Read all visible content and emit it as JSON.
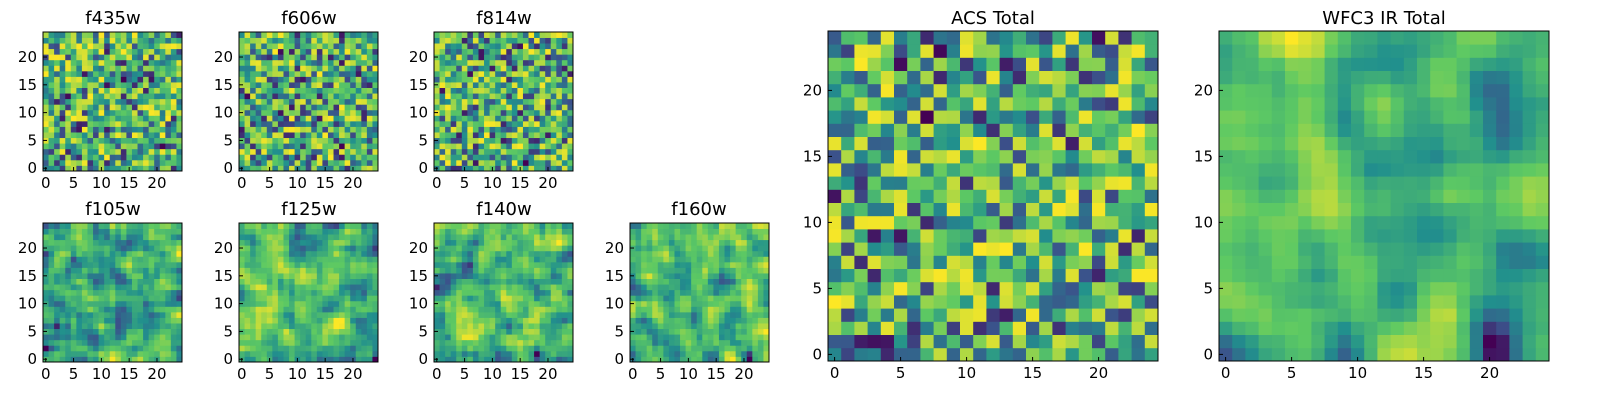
{
  "chart_data": [
    {
      "type": "heatmap",
      "title": "f435w",
      "xlim": [
        0,
        25
      ],
      "ylim": [
        0,
        25
      ],
      "xticks": [
        0,
        5,
        10,
        15,
        20
      ],
      "yticks": [
        0,
        5,
        10,
        15,
        20
      ],
      "grid": "25x25",
      "pattern_seed": 11,
      "smoothness": "low"
    },
    {
      "type": "heatmap",
      "title": "f606w",
      "xlim": [
        0,
        25
      ],
      "ylim": [
        0,
        25
      ],
      "xticks": [
        0,
        5,
        10,
        15,
        20
      ],
      "yticks": [
        0,
        5,
        10,
        15,
        20
      ],
      "grid": "25x25",
      "pattern_seed": 23,
      "smoothness": "low"
    },
    {
      "type": "heatmap",
      "title": "f814w",
      "xlim": [
        0,
        25
      ],
      "ylim": [
        0,
        25
      ],
      "xticks": [
        0,
        5,
        10,
        15,
        20
      ],
      "yticks": [
        0,
        5,
        10,
        15,
        20
      ],
      "grid": "25x25",
      "pattern_seed": 37,
      "smoothness": "low"
    },
    {
      "type": "heatmap",
      "title": "f105w",
      "xlim": [
        0,
        25
      ],
      "ylim": [
        0,
        25
      ],
      "xticks": [
        0,
        5,
        10,
        15,
        20
      ],
      "yticks": [
        0,
        5,
        10,
        15,
        20
      ],
      "grid": "25x25",
      "pattern_seed": 41,
      "smoothness": "medium"
    },
    {
      "type": "heatmap",
      "title": "f125w",
      "xlim": [
        0,
        25
      ],
      "ylim": [
        0,
        25
      ],
      "xticks": [
        0,
        5,
        10,
        15,
        20
      ],
      "yticks": [
        0,
        5,
        10,
        15,
        20
      ],
      "grid": "25x25",
      "pattern_seed": 53,
      "smoothness": "medium"
    },
    {
      "type": "heatmap",
      "title": "f140w",
      "xlim": [
        0,
        25
      ],
      "ylim": [
        0,
        25
      ],
      "xticks": [
        0,
        5,
        10,
        15,
        20
      ],
      "yticks": [
        0,
        5,
        10,
        15,
        20
      ],
      "grid": "25x25",
      "pattern_seed": 67,
      "smoothness": "medium"
    },
    {
      "type": "heatmap",
      "title": "f160w",
      "xlim": [
        0,
        25
      ],
      "ylim": [
        0,
        25
      ],
      "xticks": [
        0,
        5,
        10,
        15,
        20
      ],
      "yticks": [
        0,
        5,
        10,
        15,
        20
      ],
      "grid": "25x25",
      "pattern_seed": 79,
      "smoothness": "medium"
    },
    {
      "type": "heatmap",
      "title": "ACS Total",
      "xlim": [
        0,
        25
      ],
      "ylim": [
        0,
        25
      ],
      "xticks": [
        0,
        5,
        10,
        15,
        20
      ],
      "yticks": [
        0,
        5,
        10,
        15,
        20
      ],
      "grid": "25x25",
      "pattern_seed": 97,
      "smoothness": "low"
    },
    {
      "type": "heatmap",
      "title": "WFC3 IR Total",
      "xlim": [
        0,
        25
      ],
      "ylim": [
        0,
        25
      ],
      "xticks": [
        0,
        5,
        10,
        15,
        20
      ],
      "yticks": [
        0,
        5,
        10,
        15,
        20
      ],
      "grid": "25x25",
      "pattern_seed": 131,
      "smoothness": "high"
    }
  ],
  "colormap": [
    "#440154",
    "#3b528b",
    "#21908d",
    "#5dc963",
    "#fde725"
  ]
}
